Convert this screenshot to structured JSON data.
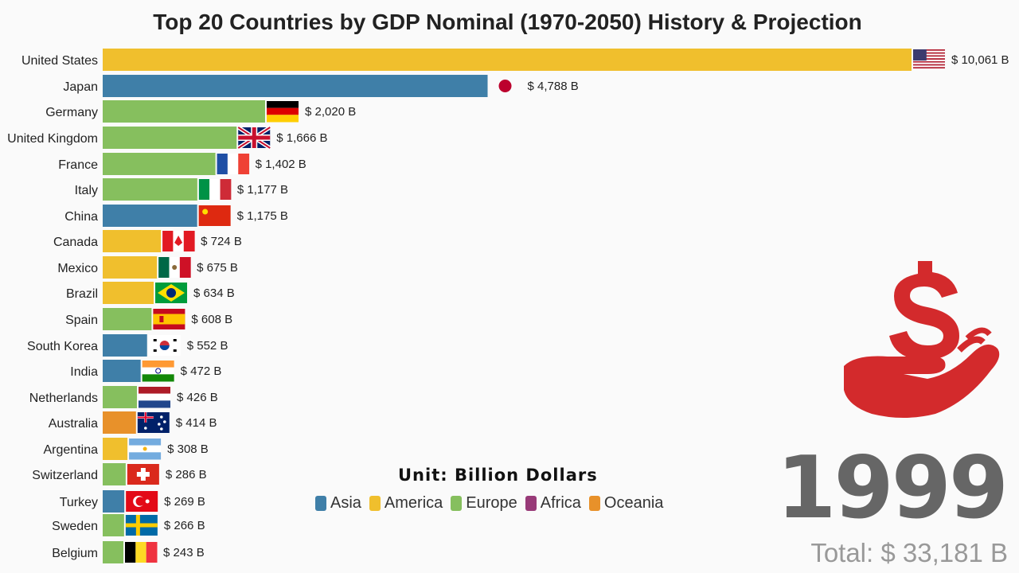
{
  "title": "Top 20 Countries by GDP Nominal (1970-2050) History & Projection",
  "year": "1999",
  "total": "Total: $ 33,181 B",
  "unit": "Unit: Billion Dollars",
  "icon": "money-hand-icon",
  "colors": {
    "Asia": "#3f7fa8",
    "America": "#f0bf2d",
    "Europe": "#86bf5e",
    "Africa": "#983a78",
    "Oceania": "#e8912a",
    "icon": "#d32a2c"
  },
  "legend": [
    "Asia",
    "America",
    "Europe",
    "Africa",
    "Oceania"
  ],
  "chart_data": {
    "type": "bar",
    "orientation": "horizontal",
    "title": "Top 20 Countries by GDP Nominal (1970-2050) History & Projection",
    "unit": "Billion Dollars",
    "categories": [
      "United States",
      "Japan",
      "Germany",
      "United Kingdom",
      "France",
      "Italy",
      "China",
      "Canada",
      "Mexico",
      "Brazil",
      "Spain",
      "South Korea",
      "India",
      "Netherlands",
      "Australia",
      "Argentina",
      "Switzerland",
      "Turkey",
      "Sweden",
      "Belgium"
    ],
    "values": [
      10061,
      4788,
      2020,
      1666,
      1402,
      1177,
      1175,
      724,
      675,
      634,
      608,
      552,
      472,
      426,
      414,
      308,
      286,
      269,
      266,
      243
    ],
    "labels": [
      "$ 10,061 B",
      "$ 4,788 B",
      "$ 2,020 B",
      "$ 1,666 B",
      "$ 1,402 B",
      "$ 1,177 B",
      "$ 1,175 B",
      "$ 724 B",
      "$ 675 B",
      "$ 634 B",
      "$ 608 B",
      "$ 552 B",
      "$ 472 B",
      "$ 426 B",
      "$ 414 B",
      "$ 308 B",
      "$ 286 B",
      "$ 269 B",
      "$ 266 B",
      "$ 243 B"
    ],
    "regions": [
      "America",
      "Asia",
      "Europe",
      "Europe",
      "Europe",
      "Europe",
      "Asia",
      "America",
      "America",
      "America",
      "Europe",
      "Asia",
      "Asia",
      "Europe",
      "Oceania",
      "America",
      "Europe",
      "Asia",
      "Europe",
      "Europe"
    ],
    "flags": [
      "us-flag",
      "japan-flag",
      "germany-flag",
      "uk-flag",
      "france-flag",
      "italy-flag",
      "china-flag",
      "canada-flag",
      "mexico-flag",
      "brazil-flag",
      "spain-flag",
      "south-korea-flag",
      "india-flag",
      "netherlands-flag",
      "australia-flag",
      "argentina-flag",
      "switzerland-flag",
      "turkey-flag",
      "sweden-flag",
      "belgium-flag"
    ],
    "grid": false,
    "legend_position": "bottom-center"
  }
}
